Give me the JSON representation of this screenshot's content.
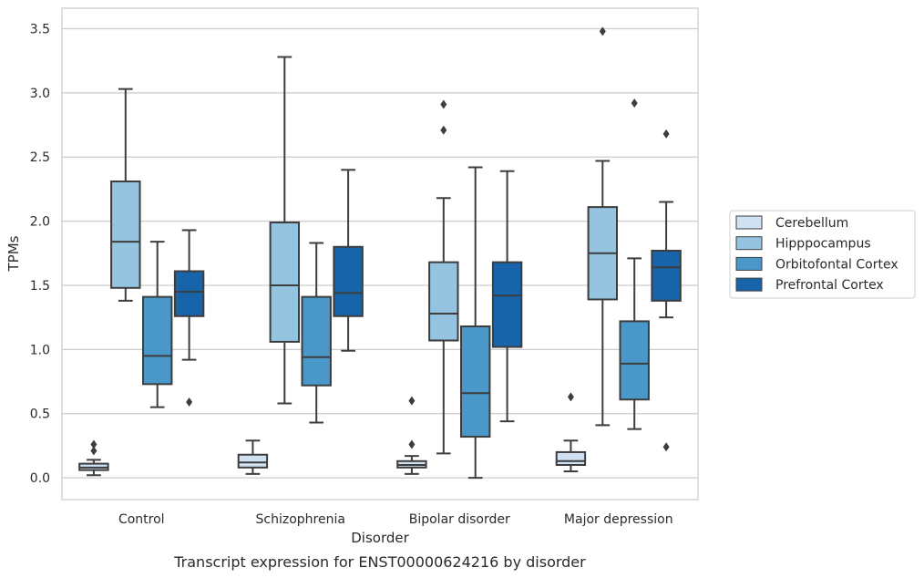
{
  "chart_data": {
    "type": "box",
    "caption": "Transcript expression for ENST00000624216 by disorder",
    "xlabel": "Disorder",
    "ylabel": "TPMs",
    "ylim": [
      -0.17,
      3.66
    ],
    "yticks": [
      "0.0",
      "0.5",
      "1.0",
      "1.5",
      "2.0",
      "2.5",
      "3.0",
      "3.5"
    ],
    "grid": "horizontal",
    "legend_position": "right",
    "categories": [
      "Control",
      "Schizophrenia",
      "Bipolar disorder",
      "Major depression"
    ],
    "series": [
      {
        "name": "Cerebellum",
        "color": "#d0e1f2",
        "boxes": [
          {
            "whislo": 0.02,
            "q1": 0.06,
            "med": 0.08,
            "q3": 0.11,
            "whishi": 0.14,
            "fliers": [
              0.21,
              0.26
            ]
          },
          {
            "whislo": 0.03,
            "q1": 0.08,
            "med": 0.12,
            "q3": 0.18,
            "whishi": 0.29,
            "fliers": []
          },
          {
            "whislo": 0.03,
            "q1": 0.08,
            "med": 0.1,
            "q3": 0.13,
            "whishi": 0.17,
            "fliers": [
              0.26,
              0.6
            ]
          },
          {
            "whislo": 0.05,
            "q1": 0.1,
            "med": 0.13,
            "q3": 0.2,
            "whishi": 0.29,
            "fliers": [
              0.63
            ]
          }
        ]
      },
      {
        "name": "Hipppocampus",
        "color": "#94c4df",
        "boxes": [
          {
            "whislo": 1.38,
            "q1": 1.48,
            "med": 1.84,
            "q3": 2.31,
            "whishi": 3.03,
            "fliers": []
          },
          {
            "whislo": 0.58,
            "q1": 1.06,
            "med": 1.5,
            "q3": 1.99,
            "whishi": 3.28,
            "fliers": []
          },
          {
            "whislo": 0.19,
            "q1": 1.07,
            "med": 1.28,
            "q3": 1.68,
            "whishi": 2.18,
            "fliers": [
              2.71,
              2.91
            ]
          },
          {
            "whislo": 0.41,
            "q1": 1.39,
            "med": 1.75,
            "q3": 2.11,
            "whishi": 2.47,
            "fliers": [
              3.48
            ]
          }
        ]
      },
      {
        "name": "Orbitofontal Cortex",
        "color": "#4a98c9",
        "boxes": [
          {
            "whislo": 0.55,
            "q1": 0.73,
            "med": 0.95,
            "q3": 1.41,
            "whishi": 1.84,
            "fliers": []
          },
          {
            "whislo": 0.43,
            "q1": 0.72,
            "med": 0.94,
            "q3": 1.41,
            "whishi": 1.83,
            "fliers": []
          },
          {
            "whislo": 0.0,
            "q1": 0.32,
            "med": 0.66,
            "q3": 1.18,
            "whishi": 2.42,
            "fliers": []
          },
          {
            "whislo": 0.38,
            "q1": 0.61,
            "med": 0.89,
            "q3": 1.22,
            "whishi": 1.71,
            "fliers": [
              2.92
            ]
          }
        ]
      },
      {
        "name": "Prefrontal Cortex",
        "color": "#1764ab",
        "boxes": [
          {
            "whislo": 0.92,
            "q1": 1.26,
            "med": 1.45,
            "q3": 1.61,
            "whishi": 1.93,
            "fliers": [
              0.59
            ]
          },
          {
            "whislo": 0.99,
            "q1": 1.26,
            "med": 1.44,
            "q3": 1.8,
            "whishi": 2.4,
            "fliers": []
          },
          {
            "whislo": 0.44,
            "q1": 1.02,
            "med": 1.42,
            "q3": 1.68,
            "whishi": 2.39,
            "fliers": []
          },
          {
            "whislo": 1.25,
            "q1": 1.38,
            "med": 1.64,
            "q3": 1.77,
            "whishi": 2.15,
            "fliers": [
              0.24,
              2.68
            ]
          }
        ]
      }
    ]
  }
}
